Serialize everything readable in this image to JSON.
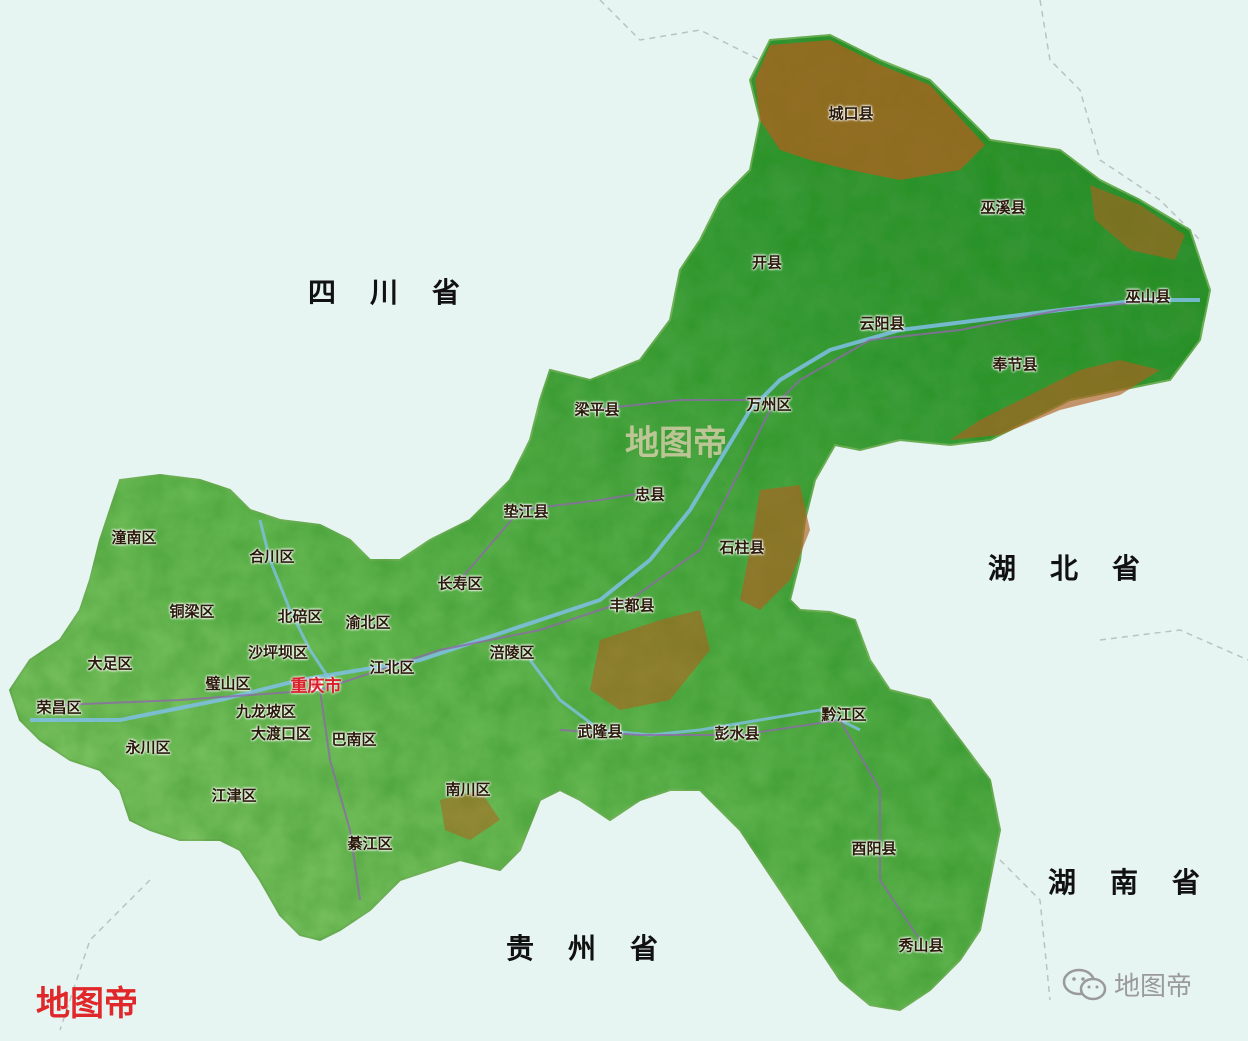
{
  "colors": {
    "background": "#e6f4f2",
    "plain": "#8fcf6f",
    "hill": "#3f9e3c",
    "mountain": "#b0601e",
    "river": "#7fc0e6",
    "road": "#8c6aa8",
    "capital": "#d9202a"
  },
  "provinces": [
    {
      "id": "sichuan",
      "label": "四川省"
    },
    {
      "id": "hubei",
      "label": "湖北省"
    },
    {
      "id": "hunan",
      "label": "湖南省"
    },
    {
      "id": "guizhou",
      "label": "贵州省"
    }
  ],
  "capital": {
    "label": "重庆市"
  },
  "counties": [
    {
      "label": "城口县"
    },
    {
      "label": "巫溪县"
    },
    {
      "label": "开县"
    },
    {
      "label": "巫山县"
    },
    {
      "label": "云阳县"
    },
    {
      "label": "奉节县"
    },
    {
      "label": "梁平县"
    },
    {
      "label": "万州区"
    },
    {
      "label": "忠县"
    },
    {
      "label": "垫江县"
    },
    {
      "label": "石柱县"
    },
    {
      "label": "潼南区"
    },
    {
      "label": "合川区"
    },
    {
      "label": "长寿区"
    },
    {
      "label": "铜梁区"
    },
    {
      "label": "北碚区"
    },
    {
      "label": "渝北区"
    },
    {
      "label": "丰都县"
    },
    {
      "label": "沙坪坝区"
    },
    {
      "label": "大足区"
    },
    {
      "label": "江北区"
    },
    {
      "label": "涪陵区"
    },
    {
      "label": "璧山区"
    },
    {
      "label": "荣昌区"
    },
    {
      "label": "九龙坡区"
    },
    {
      "label": "武隆县"
    },
    {
      "label": "彭水县"
    },
    {
      "label": "黔江区"
    },
    {
      "label": "大渡口区"
    },
    {
      "label": "巴南区"
    },
    {
      "label": "永川区"
    },
    {
      "label": "江津区"
    },
    {
      "label": "南川区"
    },
    {
      "label": "綦江区"
    },
    {
      "label": "酉阳县"
    },
    {
      "label": "秀山县"
    }
  ],
  "watermarks": {
    "center": "地图帝",
    "logo": "地图帝",
    "wechat": "地图帝"
  },
  "icons": {
    "wechat": "wechat-icon"
  }
}
